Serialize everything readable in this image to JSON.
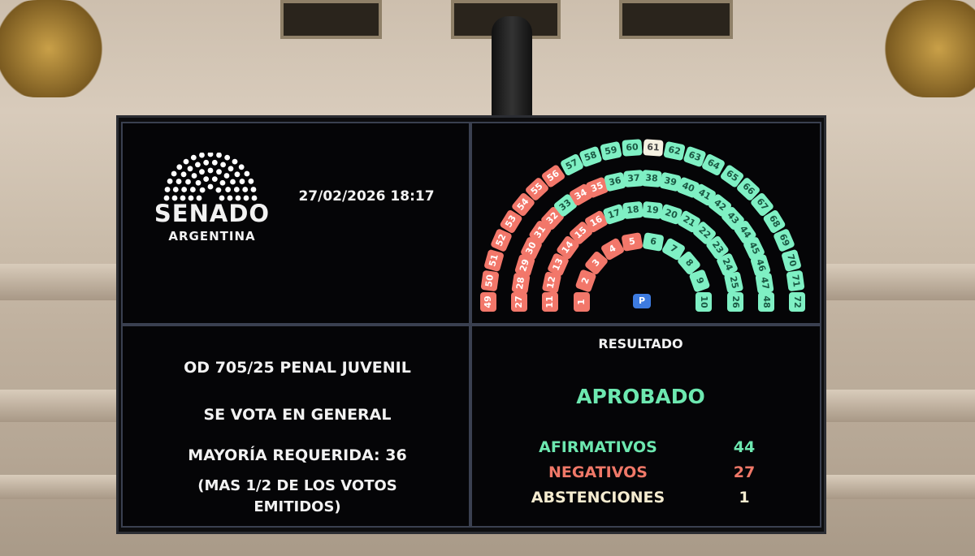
{
  "header": {
    "logo_title": "SENADO",
    "logo_subtitle": "ARGENTINA",
    "datetime": "27/02/2026 18:17"
  },
  "motion": {
    "title": "OD 705/25 PENAL JUVENIL",
    "vote_type": "SE VOTA EN GENERAL",
    "majority": "MAYORÍA REQUERIDA: 36",
    "majority_note_1": "(MAS 1/2 DE LOS VOTOS",
    "majority_note_2": "EMITIDOS)"
  },
  "result": {
    "heading": "RESULTADO",
    "outcome": "APROBADO",
    "tallies": [
      {
        "label": "AFIRMATIVOS",
        "value": "44",
        "color": "#6de8b0"
      },
      {
        "label": "NEGATIVOS",
        "value": "27",
        "color": "#f07868"
      },
      {
        "label": "ABSTENCIONES",
        "value": "1",
        "color": "#f5ecd0"
      }
    ]
  },
  "chamber": {
    "rows": [
      [
        1,
        10
      ],
      [
        11,
        26
      ],
      [
        27,
        48
      ],
      [
        49,
        72
      ]
    ],
    "negative": [
      1,
      2,
      3,
      4,
      5,
      11,
      12,
      13,
      14,
      15,
      16,
      27,
      28,
      29,
      30,
      31,
      32,
      34,
      35,
      49,
      50,
      51,
      52,
      53,
      54,
      55,
      56
    ],
    "abstention": [
      61
    ],
    "president_label": "P",
    "colors": {
      "affirmative": "#7ff0c4",
      "negative": "#f2776a",
      "abstention": "#f6f1e2",
      "president": "#3d7be0"
    }
  }
}
